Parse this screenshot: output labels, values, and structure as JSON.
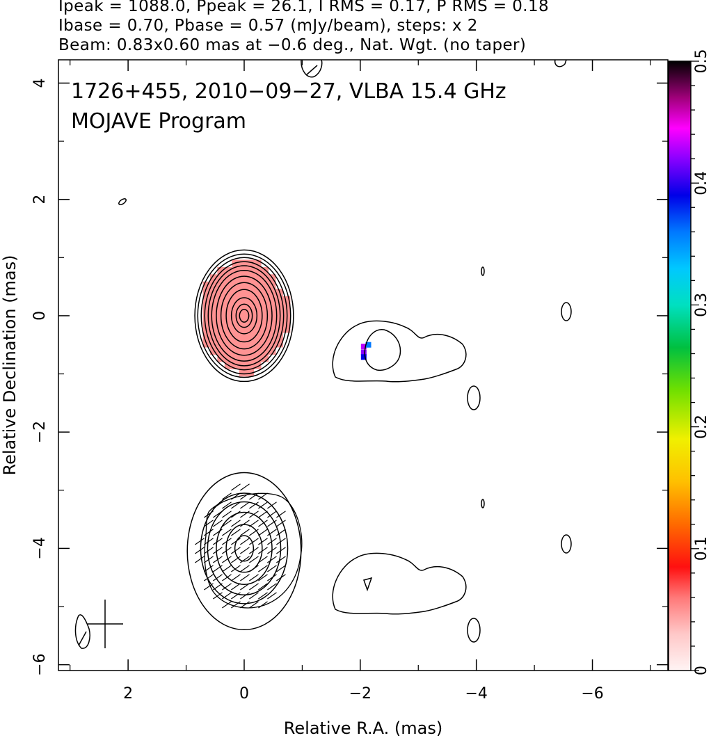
{
  "header": {
    "line1": "Ipeak = 1088.0, Ppeak = 26.1, I RMS = 0.17, P RMS = 0.18",
    "line2": "Ibase = 0.70, Pbase = 0.57 (mJy/beam), steps: x 2",
    "line3": "Beam: 0.83x0.60 mas at −0.6 deg., Nat. Wgt. (no taper)"
  },
  "chart_data": {
    "type": "contour",
    "title_line1": "1726+455, 2010−09−27, VLBA 15.4 GHz",
    "title_line2": "MOJAVE Program",
    "xlabel": "Relative R.A. (mas)",
    "ylabel": "Relative Declination (mas)",
    "xlim": [
      3.2,
      -7.3
    ],
    "ylim": [
      -6.1,
      4.4
    ],
    "x_ticks": [
      2,
      0,
      -2,
      -4,
      -6
    ],
    "x_tick_labels": [
      "2",
      "0",
      "−2",
      "−4",
      "−6"
    ],
    "y_ticks": [
      4,
      2,
      0,
      -2,
      -4,
      -6
    ],
    "y_tick_labels": [
      "4",
      "2",
      "0",
      "−2",
      "−4",
      "−6"
    ],
    "stokes_I_peak_mJy_per_beam": 1088.0,
    "polarized_peak_mJy_per_beam": 26.1,
    "contour_steps": "x 2",
    "panels": [
      {
        "name": "total intensity + fractional polarization",
        "center": [
          0,
          0
        ]
      },
      {
        "name": "polarized intensity + EVPA",
        "center": [
          0,
          -4
        ]
      }
    ],
    "core_ellipse_radii_mas": {
      "ra": [
        0.08,
        0.14,
        0.22,
        0.31,
        0.4,
        0.48,
        0.56,
        0.62,
        0.68,
        0.74,
        0.8,
        0.85
      ],
      "dec": [
        0.11,
        0.2,
        0.31,
        0.45,
        0.57,
        0.68,
        0.78,
        0.86,
        0.93,
        1.0,
        1.06,
        1.13
      ]
    },
    "pol_ellipse_radii_mas": {
      "ra": [
        0.16,
        0.31,
        0.48,
        0.63,
        0.75,
        0.98
      ],
      "dec": [
        0.22,
        0.41,
        0.62,
        0.8,
        0.95,
        1.35
      ]
    },
    "colorbar": {
      "label_values": [
        0,
        0.1,
        0.2,
        0.3,
        0.4,
        0.5
      ],
      "tick_labels": [
        "0",
        "0.1",
        "0.2",
        "0.3",
        "0.4",
        "0.5"
      ],
      "range": [
        0,
        0.5
      ]
    },
    "frac_pol_core_value": 0.05,
    "frac_pol_jet_pixels": [
      {
        "x": -2.06,
        "y": -0.53,
        "value": 0.43
      },
      {
        "x": -2.14,
        "y": -0.5,
        "value": 0.36
      },
      {
        "x": -2.06,
        "y": -0.63,
        "value": 0.42
      },
      {
        "x": -2.06,
        "y": -0.71,
        "value": 0.39
      }
    ],
    "beam": {
      "major_mas": 0.83,
      "minor_mas": 0.6,
      "pa_deg": -0.6
    }
  }
}
